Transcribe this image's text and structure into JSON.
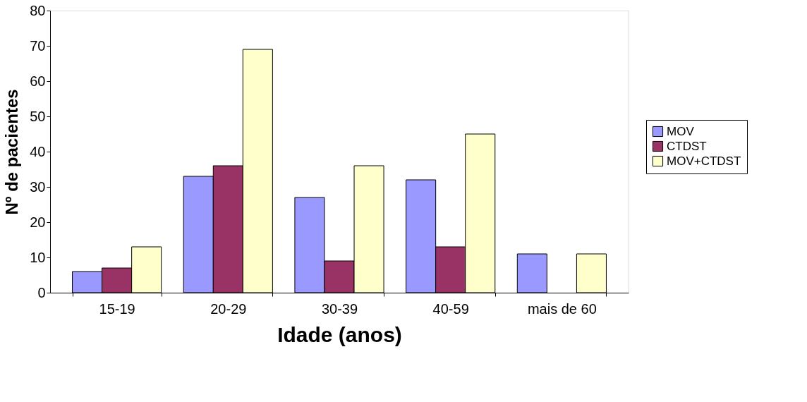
{
  "chart_data": {
    "type": "bar",
    "xlabel": "Idade (anos)",
    "ylabel": "Nº de pacientes",
    "categories": [
      "15-19",
      "20-29",
      "30-39",
      "40-59",
      "mais de 60"
    ],
    "series": [
      {
        "name": "MOV",
        "color": "#9999ff",
        "values": [
          6,
          33,
          27,
          32,
          11
        ]
      },
      {
        "name": "CTDST",
        "color": "#993366",
        "values": [
          7,
          36,
          9,
          13,
          null
        ]
      },
      {
        "name": "MOV+CTDST",
        "color": "#ffffcc",
        "values": [
          13,
          69,
          36,
          45,
          11
        ]
      }
    ],
    "ylim": [
      0,
      80
    ],
    "yticks": [
      0,
      10,
      20,
      30,
      40,
      50,
      60,
      70,
      80
    ],
    "grid": false,
    "legend": "right"
  }
}
